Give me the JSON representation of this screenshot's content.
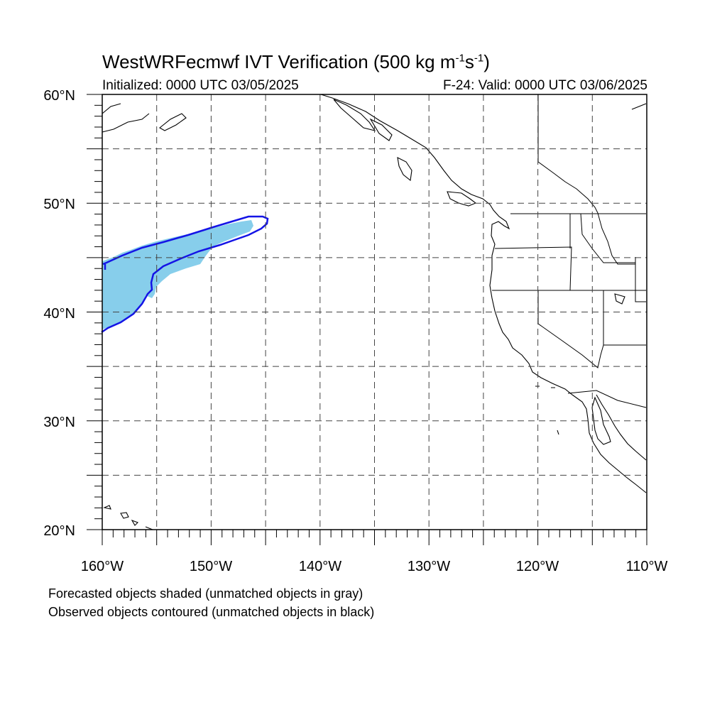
{
  "title": {
    "main": "WestWRFecmwf IVT Verification (500 kg m",
    "sup1": "-1",
    "s": "s",
    "sup2": "-1",
    "close": ")"
  },
  "initialized": "Initialized: 0000 UTC 03/05/2025",
  "valid": "F-24: Valid: 0000 UTC 03/06/2025",
  "notes": {
    "forecast": "Forecasted objects shaded (unmatched objects in gray)",
    "observed": "Observed objects contoured (unmatched objects in black)"
  },
  "map": {
    "lon_range": [
      -160,
      -110
    ],
    "lat_range": [
      20,
      60
    ],
    "lat_labels": [
      "20°N",
      "30°N",
      "40°N",
      "50°N",
      "60°N"
    ],
    "lon_labels": [
      "160°W",
      "150°W",
      "140°W",
      "130°W",
      "120°W",
      "110°W"
    ],
    "grid": "dashed every 5°",
    "colors": {
      "forecast_fill": "#87ceeb",
      "observed_contour": "#1414e6",
      "coastline": "#000000",
      "grid": "#000000"
    }
  }
}
